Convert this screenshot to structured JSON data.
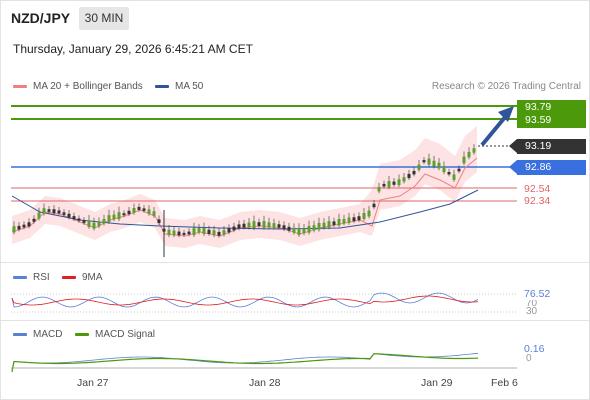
{
  "header": {
    "symbol": "NZD/JPY",
    "timeframe": "30 MIN",
    "datetime": "Thursday, January 29, 2026 6:45:21 AM CET"
  },
  "legend_main": [
    {
      "label": "MA 20 + Bollinger Bands",
      "color": "#f08080"
    },
    {
      "label": "MA 50",
      "color": "#2f5597"
    }
  ],
  "credit": "Research © 2026 Trading Central",
  "price_levels": {
    "r2": "93.79",
    "r1": "93.59",
    "last": "93.19",
    "pivot": "92.86",
    "s1": "92.54",
    "s2": "92.34"
  },
  "colors": {
    "resistance": "#4c9a0c",
    "pivot": "#3a6fe0",
    "support": "#e06666",
    "last": "#333333",
    "arrow": "#2f5597"
  },
  "rsi": {
    "legend": [
      {
        "label": "RSI",
        "color": "#5b7fd6"
      },
      {
        "label": "9MA",
        "color": "#e02020"
      }
    ],
    "value": "76.52",
    "level_top": "70",
    "level_bottom": "30"
  },
  "macd": {
    "legend": [
      {
        "label": "MACD",
        "color": "#5b7fd6"
      },
      {
        "label": "MACD Signal",
        "color": "#4c9a0c"
      }
    ],
    "value": "0.16",
    "zero": "0"
  },
  "x_axis": [
    "Jan 27",
    "Jan 28",
    "Jan 29",
    "Feb 6"
  ]
}
